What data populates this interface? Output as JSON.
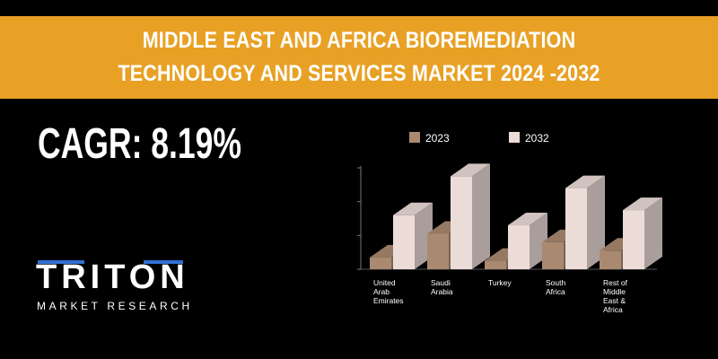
{
  "header": {
    "title_line1": "MIDDLE EAST AND AFRICA BIOREMEDIATION",
    "title_line2": "TECHNOLOGY AND SERVICES MARKET 2024 -2032"
  },
  "cagr": "CAGR: 8.19%",
  "logo": {
    "word": "TRITON",
    "sub": "MARKET RESEARCH"
  },
  "colors": {
    "banner": "#e8a125",
    "bar_2023": "#a98a70",
    "bar_2032": "#ecdcd8",
    "logo_accent": "#2f6fd0"
  },
  "chart_data": {
    "type": "bar",
    "categories": [
      [
        "United",
        "Arab",
        "Emirates"
      ],
      [
        "Saudi",
        "Arabia"
      ],
      [
        "Turkey"
      ],
      [
        "South",
        "Africa"
      ],
      [
        "Rest of",
        "Middle",
        "East &",
        "Africa"
      ]
    ],
    "series": [
      {
        "name": "2023",
        "values": [
          0.35,
          1.05,
          0.25,
          0.8,
          0.55
        ]
      },
      {
        "name": "2032",
        "values": [
          1.6,
          2.75,
          1.3,
          2.4,
          1.75
        ]
      }
    ],
    "title": "",
    "xlabel": "",
    "ylabel": "",
    "ylim": [
      0,
      3
    ],
    "legend_position": "top",
    "grid": false
  }
}
